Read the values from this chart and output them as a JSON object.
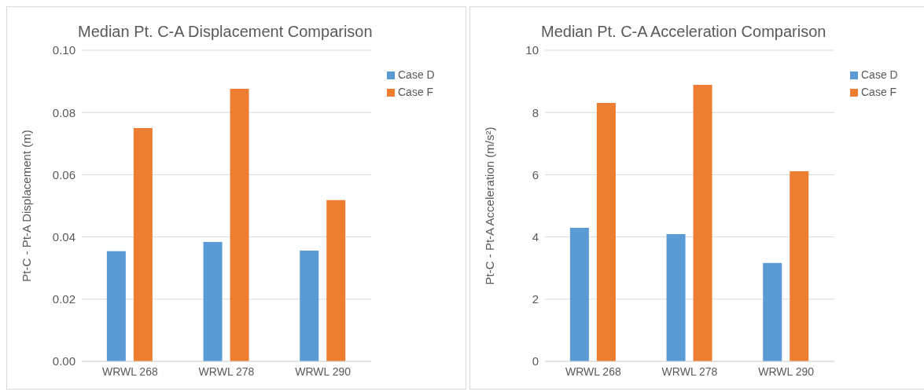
{
  "chart_data": [
    {
      "type": "bar",
      "title": "Median Pt. C-A Displacement Comparison",
      "ylabel": "Pt-C - Pt-A Displacement (m)",
      "categories": [
        "WRWL 268",
        "WRWL 278",
        "WRWL 290"
      ],
      "series": [
        {
          "name": "Case D",
          "color": "#5b9bd5",
          "values": [
            0.0354,
            0.0384,
            0.0356
          ]
        },
        {
          "name": "Case F",
          "color": "#ed7d31",
          "values": [
            0.075,
            0.0876,
            0.0518
          ]
        }
      ],
      "ylim": [
        0,
        0.1
      ],
      "yticks": [
        {
          "value": 0,
          "label": "0.00"
        },
        {
          "value": 0.02,
          "label": "0.02"
        },
        {
          "value": 0.04,
          "label": "0.04"
        },
        {
          "value": 0.06,
          "label": "0.06"
        },
        {
          "value": 0.08,
          "label": "0.08"
        },
        {
          "value": 0.1,
          "label": "0.10"
        }
      ],
      "grid": "y",
      "legend": "top right"
    },
    {
      "type": "bar",
      "title": "Median Pt. C-A Acceleration Comparison",
      "ylabel": "Pt-C - Pt-A Acceleration (m/s²)",
      "categories": [
        "WRWL 268",
        "WRWL 278",
        "WRWL 290"
      ],
      "series": [
        {
          "name": "Case D",
          "color": "#5b9bd5",
          "values": [
            4.29,
            4.09,
            3.16
          ]
        },
        {
          "name": "Case F",
          "color": "#ed7d31",
          "values": [
            8.31,
            8.89,
            6.11
          ]
        }
      ],
      "ylim": [
        0,
        10
      ],
      "yticks": [
        0,
        2,
        4,
        6,
        8,
        10
      ],
      "grid": "y",
      "legend": "top right"
    }
  ]
}
